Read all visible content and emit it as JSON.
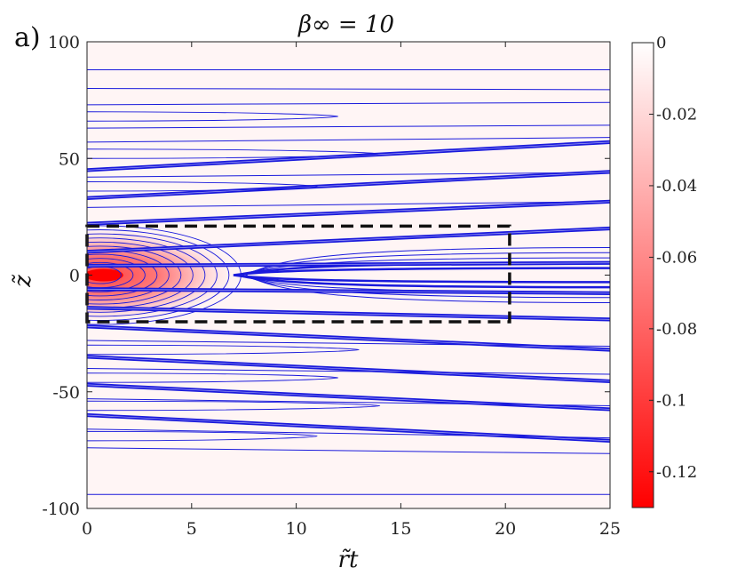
{
  "chart_data": {
    "type": "heatmap",
    "panel_label": "a)",
    "title": "β∞ = 10",
    "xlabel": "r̃t",
    "ylabel": "z̃",
    "xlim": [
      0,
      25
    ],
    "ylim": [
      -100,
      100
    ],
    "x_ticks": [
      0,
      5,
      10,
      15,
      20,
      25
    ],
    "y_ticks": [
      -100,
      -50,
      0,
      50,
      100
    ],
    "colorbar": {
      "range": [
        -0.13,
        0
      ],
      "ticks": [
        0,
        -0.02,
        -0.04,
        -0.06,
        -0.08,
        -0.1,
        -0.12
      ],
      "tick_labels": [
        "0",
        "-0.02",
        "-0.04",
        "-0.06",
        "-0.08",
        "-0.1",
        "-0.12"
      ],
      "low_color": "#ff0000",
      "high_color": "#ffffff"
    },
    "peak": {
      "r": 0.8,
      "z": 0,
      "value": -0.13
    },
    "contour_color": "#1a1adc",
    "dashed_box": {
      "r": [
        0,
        20.2
      ],
      "z": [
        -20,
        21
      ]
    },
    "streamlines": [
      {
        "z0": 88,
        "slope": 0,
        "bold": false
      },
      {
        "z0": 80,
        "slope": -0.02,
        "bold": false
      },
      {
        "z0": 73,
        "slope": 0.04,
        "bold": false
      },
      {
        "z0": 63,
        "slope": 0.05,
        "bold": false
      },
      {
        "z0": 57,
        "slope": 0.08,
        "bold": false
      },
      {
        "z0": 45,
        "slope": 0.48,
        "bold": true
      },
      {
        "z0": 42,
        "slope": 0.08,
        "bold": false
      },
      {
        "z0": 33,
        "slope": 0.45,
        "bold": true
      },
      {
        "z0": 29,
        "slope": 0.1,
        "bold": false
      },
      {
        "z0": 22,
        "slope": 0.38,
        "bold": true
      },
      {
        "z0": 10,
        "slope": 0.4,
        "bold": true
      },
      {
        "z0": 4,
        "slope": 0.05,
        "bold": true
      },
      {
        "z0": -6,
        "slope": -0.07,
        "bold": true
      },
      {
        "z0": -14,
        "slope": -0.2,
        "bold": true
      },
      {
        "z0": -22,
        "slope": -0.4,
        "bold": true
      },
      {
        "z0": -28,
        "slope": -0.1,
        "bold": false
      },
      {
        "z0": -35,
        "slope": -0.42,
        "bold": true
      },
      {
        "z0": -40,
        "slope": -0.1,
        "bold": false
      },
      {
        "z0": -47,
        "slope": -0.42,
        "bold": true
      },
      {
        "z0": -53,
        "slope": -0.12,
        "bold": false
      },
      {
        "z0": -60,
        "slope": -0.44,
        "bold": true
      },
      {
        "z0": -66,
        "slope": -0.15,
        "bold": false
      },
      {
        "z0": -74,
        "slope": -0.1,
        "bold": false
      },
      {
        "z0": -94,
        "slope": 0,
        "bold": false
      }
    ],
    "grid": false
  }
}
